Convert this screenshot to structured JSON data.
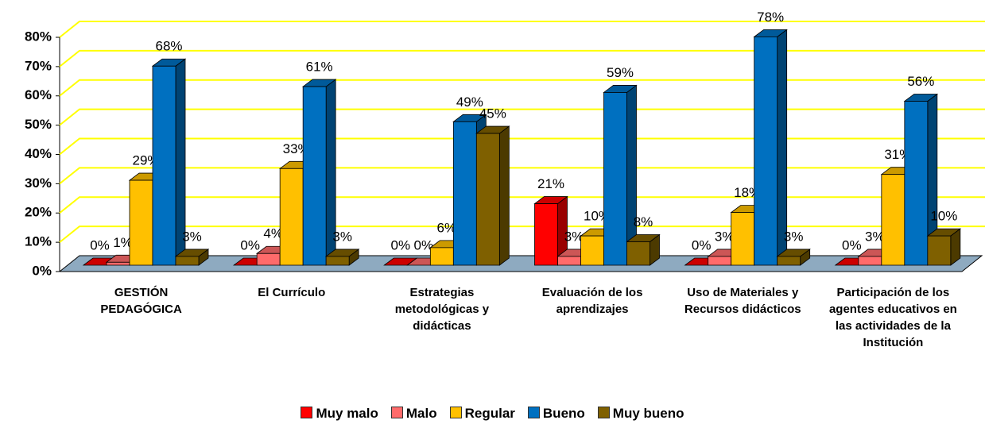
{
  "chart_data": {
    "type": "bar3d",
    "categories": [
      "GESTIÓN PEDAGÓGICA",
      "El Currículo",
      "Estrategias metodológicas y didácticas",
      "Evaluación de los aprendizajes",
      "Uso de Materiales y Recursos didácticos",
      "Participación de los agentes educativos en las actividades de la Institución"
    ],
    "series": [
      {
        "name": "Muy malo",
        "color": "#ff0000",
        "values": [
          0,
          0,
          0,
          21,
          0,
          0
        ],
        "value_labels": [
          "0%",
          "0%",
          "0%",
          "21%",
          "0%",
          "0%"
        ]
      },
      {
        "name": "Malo",
        "color": "#ff6b6b",
        "values": [
          1,
          4,
          0,
          3,
          3,
          3
        ],
        "value_labels": [
          "1%",
          "4%",
          "0%",
          "3%",
          "3%",
          "3%"
        ]
      },
      {
        "name": "Regular",
        "color": "#ffc000",
        "values": [
          29,
          33,
          6,
          10,
          18,
          31
        ],
        "value_labels": [
          "29%",
          "33%",
          "6%",
          "10%",
          "18%",
          "31%"
        ]
      },
      {
        "name": "Bueno",
        "color": "#0070c0",
        "values": [
          68,
          61,
          49,
          59,
          78,
          56
        ],
        "value_labels": [
          "68%",
          "61%",
          "49%",
          "59%",
          "78%",
          "56%"
        ]
      },
      {
        "name": "Muy bueno",
        "color": "#7f6000",
        "values": [
          3,
          3,
          45,
          8,
          3,
          10
        ],
        "value_labels": [
          "3%",
          "3%",
          "45%",
          "8%",
          "3%",
          "10%"
        ]
      }
    ],
    "ylim": [
      0,
      80
    ],
    "yticks": [
      {
        "value": 0,
        "label": "0%"
      },
      {
        "value": 10,
        "label": "10%"
      },
      {
        "value": 20,
        "label": "20%"
      },
      {
        "value": 30,
        "label": "30%"
      },
      {
        "value": 40,
        "label": "40%"
      },
      {
        "value": 50,
        "label": "50%"
      },
      {
        "value": 60,
        "label": "60%"
      },
      {
        "value": 70,
        "label": "70%"
      },
      {
        "value": 80,
        "label": "80%"
      }
    ],
    "grid": true,
    "legend": "bottom"
  }
}
